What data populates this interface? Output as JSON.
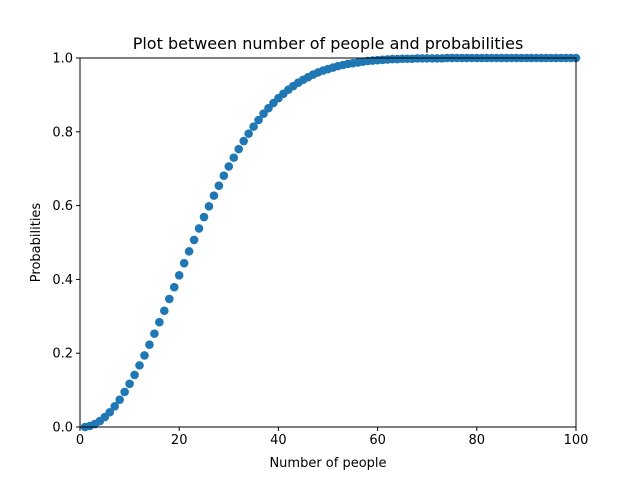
{
  "chart_data": {
    "type": "scatter",
    "title": "Plot between number of people and probabilities",
    "xlabel": "Number of people",
    "ylabel": "Probabilities",
    "xlim": [
      0,
      100
    ],
    "ylim": [
      0,
      1.0
    ],
    "xticks": [
      0,
      20,
      40,
      60,
      80,
      100
    ],
    "xtick_labels": [
      "0",
      "20",
      "40",
      "60",
      "80",
      "100"
    ],
    "yticks": [
      0,
      0.2,
      0.4,
      0.6,
      0.8,
      1.0
    ],
    "ytick_labels": [
      "0.0",
      "0.2",
      "0.4",
      "0.6",
      "0.8",
      "1.0"
    ],
    "grid": false,
    "marker_color": "#1f77b4",
    "series": [
      {
        "x": [
          1,
          2,
          3,
          4,
          5,
          6,
          7,
          8,
          9,
          10,
          11,
          12,
          13,
          14,
          15,
          16,
          17,
          18,
          19,
          20,
          21,
          22,
          23,
          24,
          25,
          26,
          27,
          28,
          29,
          30,
          31,
          32,
          33,
          34,
          35,
          36,
          37,
          38,
          39,
          40,
          41,
          42,
          43,
          44,
          45,
          46,
          47,
          48,
          49,
          50,
          51,
          52,
          53,
          54,
          55,
          56,
          57,
          58,
          59,
          60,
          61,
          62,
          63,
          64,
          65,
          66,
          67,
          68,
          69,
          70,
          71,
          72,
          73,
          74,
          75,
          76,
          77,
          78,
          79,
          80,
          81,
          82,
          83,
          84,
          85,
          86,
          87,
          88,
          89,
          90,
          91,
          92,
          93,
          94,
          95,
          96,
          97,
          98,
          99,
          100
        ],
        "y": [
          0,
          0.003,
          0.008,
          0.016,
          0.027,
          0.04,
          0.056,
          0.074,
          0.095,
          0.117,
          0.141,
          0.167,
          0.194,
          0.223,
          0.253,
          0.284,
          0.315,
          0.347,
          0.379,
          0.411,
          0.444,
          0.476,
          0.507,
          0.538,
          0.569,
          0.598,
          0.627,
          0.654,
          0.681,
          0.706,
          0.73,
          0.753,
          0.775,
          0.795,
          0.814,
          0.832,
          0.849,
          0.864,
          0.878,
          0.891,
          0.903,
          0.914,
          0.924,
          0.933,
          0.941,
          0.948,
          0.955,
          0.961,
          0.966,
          0.97,
          0.974,
          0.978,
          0.981,
          0.984,
          0.986,
          0.988,
          0.99,
          0.992,
          0.993,
          0.994,
          0.995,
          0.996,
          0.997,
          0.997,
          0.998,
          0.998,
          0.998,
          0.999,
          0.999,
          0.999,
          0.999,
          0.999,
          0.999,
          1.0,
          1.0,
          1.0,
          1.0,
          1.0,
          1.0,
          1.0,
          1.0,
          1.0,
          1.0,
          1.0,
          1.0,
          1.0,
          1.0,
          1.0,
          1.0,
          1.0,
          1.0,
          1.0,
          1.0,
          1.0,
          1.0,
          1.0,
          1.0,
          1.0,
          1.0,
          1.0
        ]
      }
    ]
  }
}
